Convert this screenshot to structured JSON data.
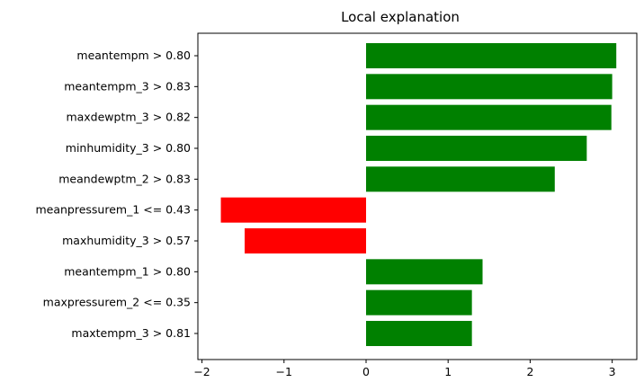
{
  "chart_data": {
    "type": "bar",
    "orientation": "horizontal",
    "title": "Local explanation",
    "xlabel": "",
    "ylabel": "",
    "xlim": [
      -2.05,
      3.3
    ],
    "xticks": [
      -2,
      -1,
      0,
      1,
      2,
      3
    ],
    "xtick_labels": [
      "−2",
      "−1",
      "0",
      "1",
      "2",
      "3"
    ],
    "grid": false,
    "categories": [
      "meantempm > 0.80",
      "meantempm_3 > 0.83",
      "maxdewptm_3 > 0.82",
      "minhumidity_3 > 0.80",
      "meandewptm_2 > 0.83",
      "meanpressurem_1 <= 0.43",
      "maxhumidity_3 > 0.57",
      "meantempm_1 > 0.80",
      "maxpressurem_2 <= 0.35",
      "maxtempm_3 > 0.81"
    ],
    "values": [
      3.05,
      3.0,
      2.99,
      2.69,
      2.3,
      -1.77,
      -1.48,
      1.42,
      1.29,
      1.29
    ],
    "colors": {
      "positive": "#008000",
      "negative": "#ff0000"
    }
  }
}
